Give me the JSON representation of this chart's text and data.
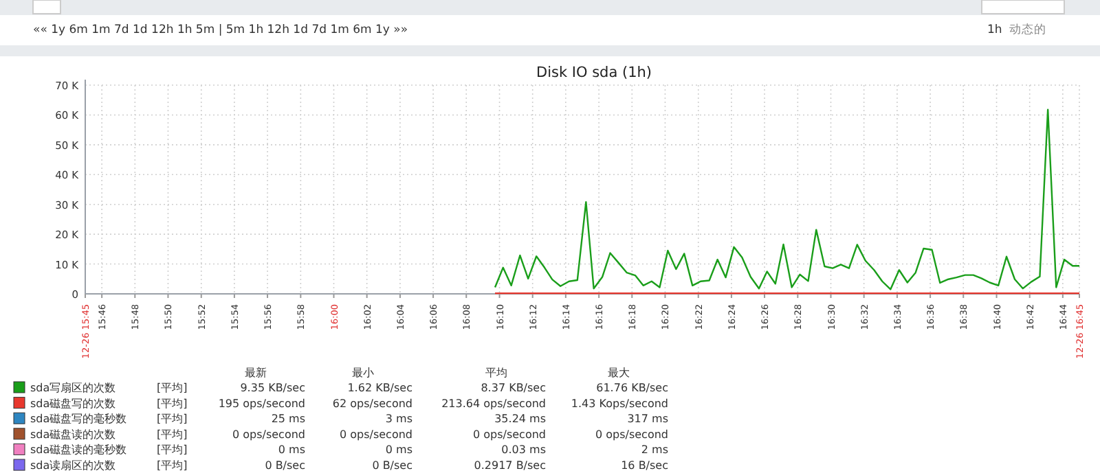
{
  "chart_data": {
    "type": "line",
    "title": "Disk IO sda (1h)",
    "xlim": [
      15.75,
      16.75
    ],
    "xticks": [
      {
        "value": 15.75,
        "label": "12-26 15:45"
      },
      {
        "value": 15.7667,
        "label": "15:46"
      },
      {
        "value": 15.8,
        "label": "15:48"
      },
      {
        "value": 15.8333,
        "label": "15:50"
      },
      {
        "value": 15.8667,
        "label": "15:52"
      },
      {
        "value": 15.9,
        "label": "15:54"
      },
      {
        "value": 15.9333,
        "label": "15:56"
      },
      {
        "value": 15.9667,
        "label": "15:58"
      },
      {
        "value": 16.0,
        "label": "16:00"
      },
      {
        "value": 16.0333,
        "label": "16:02"
      },
      {
        "value": 16.0667,
        "label": "16:04"
      },
      {
        "value": 16.1,
        "label": "16:06"
      },
      {
        "value": 16.1333,
        "label": "16:08"
      },
      {
        "value": 16.1667,
        "label": "16:10"
      },
      {
        "value": 16.2,
        "label": "16:12"
      },
      {
        "value": 16.2333,
        "label": "16:14"
      },
      {
        "value": 16.2667,
        "label": "16:16"
      },
      {
        "value": 16.3,
        "label": "16:18"
      },
      {
        "value": 16.3333,
        "label": "16:20"
      },
      {
        "value": 16.3667,
        "label": "16:22"
      },
      {
        "value": 16.4,
        "label": "16:24"
      },
      {
        "value": 16.4333,
        "label": "16:26"
      },
      {
        "value": 16.4667,
        "label": "16:28"
      },
      {
        "value": 16.5,
        "label": "16:30"
      },
      {
        "value": 16.5333,
        "label": "16:32"
      },
      {
        "value": 16.5667,
        "label": "16:34"
      },
      {
        "value": 16.6,
        "label": "16:36"
      },
      {
        "value": 16.6333,
        "label": "16:38"
      },
      {
        "value": 16.6667,
        "label": "16:40"
      },
      {
        "value": 16.7,
        "label": "16:42"
      },
      {
        "value": 16.7333,
        "label": "16:44"
      },
      {
        "value": 16.75,
        "label": "12-26 16:45"
      }
    ],
    "ylim": [
      0,
      70000
    ],
    "yticks": [
      0,
      {
        "value": 10000,
        "label": "10 K"
      },
      {
        "value": 20000,
        "label": "20 K"
      },
      {
        "value": 30000,
        "label": "30 K"
      },
      {
        "value": 40000,
        "label": "40 K"
      },
      {
        "value": 50000,
        "label": "50 K"
      },
      {
        "value": 60000,
        "label": "60 K"
      },
      {
        "value": 70000,
        "label": "70 K"
      }
    ],
    "grid": true,
    "legend": "bottom left",
    "series": [
      {
        "name": "sda写扇区的次数",
        "color": "#1a9e1a",
        "x": [
          16.1622,
          16.1703,
          16.1785,
          16.1873,
          16.1955,
          16.2038,
          16.212,
          16.2198,
          16.228,
          16.2367,
          16.245,
          16.2537,
          16.2615,
          16.2702,
          16.278,
          16.2862,
          16.2948,
          16.3032,
          16.3113,
          16.3197,
          16.3278,
          16.336,
          16.3443,
          16.3525,
          16.3608,
          16.369,
          16.3777,
          16.386,
          16.3942,
          16.4025,
          16.4107,
          16.4193,
          16.4277,
          16.4358,
          16.4442,
          16.4523,
          16.4607,
          16.4688,
          16.4772,
          16.4853,
          16.4937,
          16.5018,
          16.51,
          16.5183,
          16.5265,
          16.5348,
          16.5435,
          16.5517,
          16.56,
          16.5687,
          16.577,
          16.5852,
          16.5933,
          16.6017,
          16.6098,
          16.6182,
          16.6263,
          16.635,
          16.6433,
          16.6515,
          16.6598,
          16.6685,
          16.6767,
          16.685,
          16.6932,
          16.7015,
          16.7102,
          16.7183,
          16.7267,
          16.7348,
          16.7432,
          16.75
        ],
        "values": [
          2200,
          8800,
          2800,
          12900,
          5100,
          12600,
          8800,
          4800,
          2600,
          4200,
          4600,
          30800,
          1800,
          5700,
          13700,
          10500,
          7100,
          6200,
          2800,
          4200,
          2200,
          14500,
          8300,
          13500,
          2800,
          4200,
          4500,
          11500,
          5500,
          15700,
          12200,
          5700,
          1800,
          7500,
          3400,
          16600,
          2200,
          6500,
          4300,
          21500,
          9200,
          8600,
          9800,
          8600,
          16500,
          11100,
          8000,
          4200,
          1500,
          8000,
          3800,
          7100,
          15200,
          14800,
          3700,
          4900,
          5500,
          6300,
          6300,
          5200,
          3800,
          2800,
          12500,
          4900,
          1800,
          4000,
          5800,
          61800,
          2200,
          11500,
          9400,
          9400
        ]
      },
      {
        "name": "sda磁盘写的次数",
        "color": "#e8382e",
        "x": [
          16.1622,
          16.3,
          16.45,
          16.6,
          16.75
        ],
        "values": [
          200,
          200,
          200,
          200,
          200
        ]
      },
      {
        "name": "sda磁盘写的毫秒数",
        "color": "#2e86c1"
      },
      {
        "name": "sda磁盘读的次数",
        "color": "#a0522d"
      },
      {
        "name": "sda磁盘读的毫秒数",
        "color": "#f080c0"
      },
      {
        "name": "sda读扇区的次数",
        "color": "#7b68ee"
      }
    ],
    "annotations": [
      "«« 1y 6m 1m 7d 1d 12h 1h 5m | 5m 1h 12h 1d 7d 1m 6m 1y »»",
      "1h",
      "动态的",
      "最新",
      "最小",
      "平均",
      "最大",
      "[平均]",
      "9.35 KB/sec",
      "1.62 KB/sec",
      "8.37 KB/sec",
      "61.76 KB/sec",
      "[平均]",
      "195 ops/second",
      "62 ops/second",
      "213.64 ops/second",
      "1.43 Kops/second",
      "[平均]",
      "25 ms",
      "3 ms",
      "35.24 ms",
      "317 ms",
      "[平均]",
      "0 ops/second",
      "0 ops/second",
      "0 ops/second",
      "0 ops/second",
      "[平均]",
      "0 ms",
      "0 ms",
      "0.03 ms",
      "2 ms",
      "[平均]",
      "0 B/sec",
      "0 B/sec",
      "0.2917 B/sec",
      "16 B/sec"
    ]
  }
}
